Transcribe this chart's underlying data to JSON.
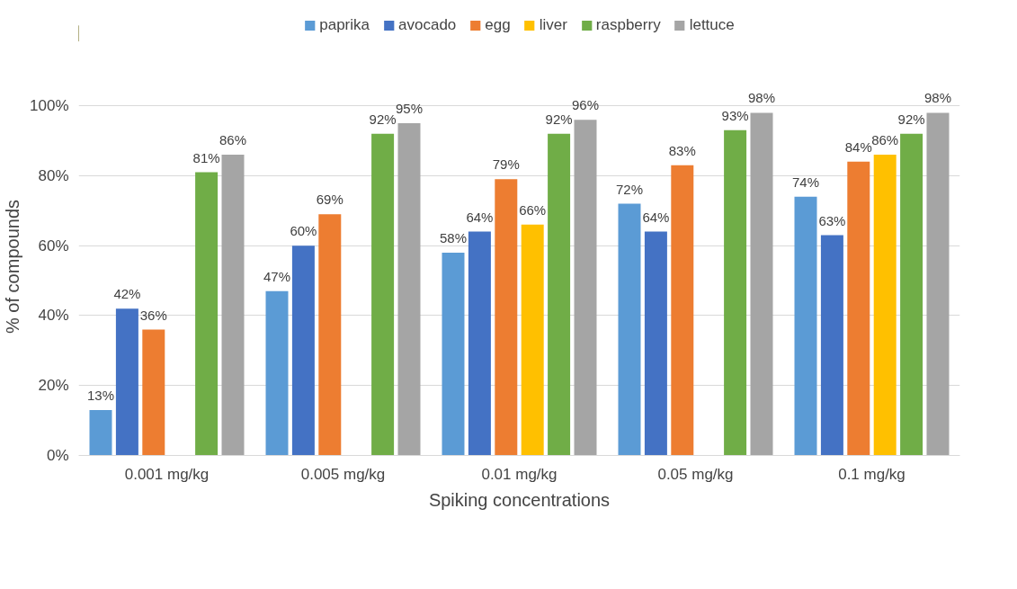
{
  "chart_data": {
    "type": "bar",
    "xlabel": "Spiking concentrations",
    "ylabel": "% of compounds",
    "categories": [
      "0.001 mg/kg",
      "0.005 mg/kg",
      "0.01 mg/kg",
      "0.05 mg/kg",
      "0.1 mg/kg"
    ],
    "series": [
      {
        "name": "paprika",
        "color": "#5b9bd5",
        "values": [
          13,
          47,
          58,
          72,
          74
        ],
        "value_labels": [
          "13%",
          "47%",
          "58%",
          "72%",
          "74%"
        ]
      },
      {
        "name": "avocado",
        "color": "#4472c4",
        "values": [
          42,
          60,
          64,
          64,
          63
        ],
        "value_labels": [
          "42%",
          "60%",
          "64%",
          "64%",
          "63%"
        ]
      },
      {
        "name": "egg",
        "color": "#ed7d31",
        "values": [
          36,
          69,
          79,
          83,
          84
        ],
        "value_labels": [
          "36%",
          "69%",
          "79%",
          "83%",
          "84%"
        ]
      },
      {
        "name": "liver",
        "color": "#ffc000",
        "values": [
          null,
          null,
          66,
          null,
          86
        ],
        "value_labels": [
          null,
          null,
          "66%",
          null,
          "86%"
        ]
      },
      {
        "name": "raspberry",
        "color": "#70ad47",
        "values": [
          81,
          92,
          92,
          93,
          92
        ],
        "value_labels": [
          "81%",
          "92%",
          "92%",
          "93%",
          "92%"
        ]
      },
      {
        "name": "lettuce",
        "color": "#a5a5a5",
        "values": [
          86,
          95,
          96,
          98,
          98
        ],
        "value_labels": [
          "86%",
          "95%",
          "96%",
          "98%",
          "98%"
        ]
      }
    ],
    "ylim": [
      0,
      100
    ],
    "yticks": [
      {
        "value": 0,
        "label": "0%"
      },
      {
        "value": 20,
        "label": "20%"
      },
      {
        "value": 40,
        "label": "40%"
      },
      {
        "value": 60,
        "label": "60%"
      },
      {
        "value": 80,
        "label": "80%"
      },
      {
        "value": 100,
        "label": "100%"
      }
    ],
    "grid": "y",
    "legend": "top"
  }
}
